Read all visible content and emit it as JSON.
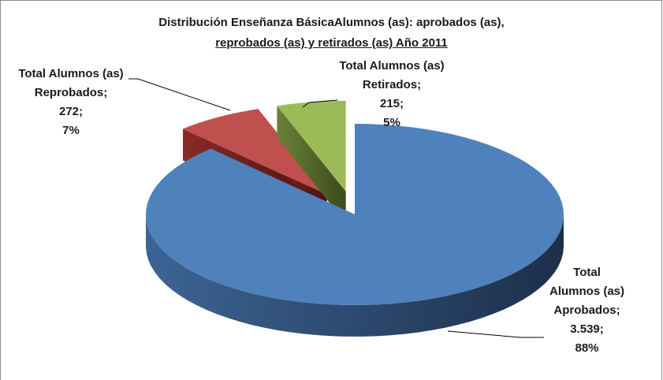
{
  "chart_data": {
    "type": "pie3d",
    "title": [
      "Distribución Enseñanza BásicaAlumnos (as):  aprobados (as),",
      "reprobados (as) y retirados (as) Año 2011"
    ],
    "categories": [
      "Total Alumnos (as) Aprobados",
      "Total Alumnos (as) Reprobados",
      "Total Alumnos (as) Retirados"
    ],
    "values": [
      3539,
      272,
      215
    ],
    "value_labels": [
      "3.539",
      "272",
      "215"
    ],
    "percents": [
      88,
      7,
      5
    ],
    "percent_labels": [
      "88%",
      "7%",
      "5%"
    ],
    "separator": ";",
    "colors": [
      "#4f81bd",
      "#c0504d",
      "#9bbb59"
    ]
  }
}
